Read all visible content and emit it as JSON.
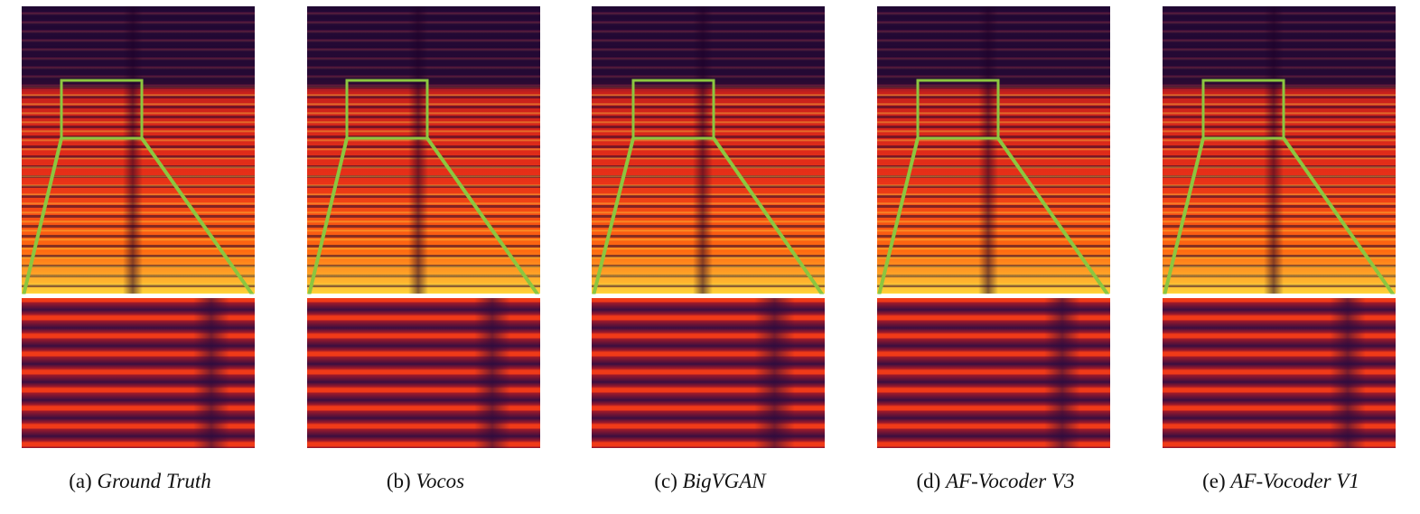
{
  "colors": {
    "zoom_box": "#8cc63f",
    "divider": "#ffffff"
  },
  "panels": [
    {
      "prefix": "(a)",
      "model": "Ground Truth"
    },
    {
      "prefix": "(b)",
      "model": "Vocos"
    },
    {
      "prefix": "(c)",
      "model": "BigVGAN"
    },
    {
      "prefix": "(d)",
      "model": "AF-Vocoder V3"
    },
    {
      "prefix": "(e)",
      "model": "AF-Vocoder V1"
    }
  ]
}
